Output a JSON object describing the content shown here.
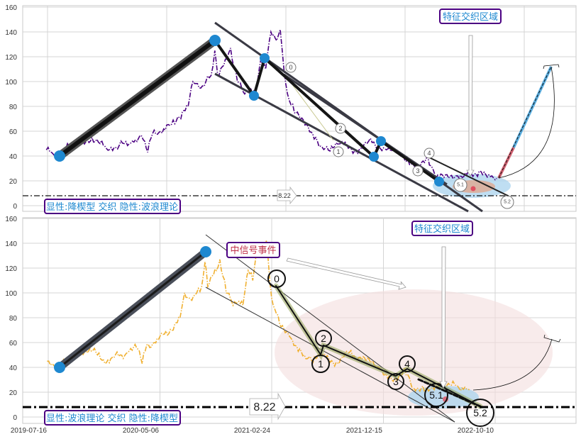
{
  "chart_data": [
    {
      "type": "line",
      "panel": "top",
      "title": "",
      "xlabel": "",
      "ylabel": "",
      "ylim": [
        0,
        160
      ],
      "yticks": [
        0,
        20,
        40,
        60,
        80,
        100,
        120,
        140,
        160
      ],
      "grid": true,
      "series_color": "#4b0082",
      "line_style": "dash-dot",
      "support_level": "8.22",
      "pattern_label": "显性:降楔型 交织 隐性:波浪理论",
      "zone_label": "特征交织区域",
      "wave_labels": [
        "0",
        "1",
        "2",
        "3",
        "4",
        "5.1",
        "5.2"
      ],
      "pivot_values": [
        40,
        133,
        89,
        119,
        39,
        52,
        19
      ]
    },
    {
      "type": "line",
      "panel": "bottom",
      "title": "",
      "xlabel": "",
      "ylabel": "",
      "ylim": [
        0,
        160
      ],
      "yticks": [
        0,
        20,
        40,
        60,
        80,
        100,
        120,
        140,
        160
      ],
      "xticks": [
        "2019-07-16",
        "2020-05-06",
        "2021-02-24",
        "2021-12-15",
        "2022-10-10"
      ],
      "grid": true,
      "series_color": "#f0b030",
      "line_style": "dash-dot",
      "support_level": "8.22",
      "pattern_label": "显性:波浪理论 交织 隐性:降楔型",
      "zone_label": "特征交织区域",
      "event_label": "中信号事件",
      "wave_labels": [
        "0",
        "1",
        "2",
        "3",
        "4",
        "5.1",
        "5.2"
      ],
      "pivot_values": [
        40,
        133
      ]
    }
  ],
  "price_series": {
    "x_unit": "days since 2019-07-16",
    "points": [
      [
        -3,
        45
      ],
      [
        10,
        43
      ],
      [
        32,
        40
      ],
      [
        45,
        46
      ],
      [
        58,
        49
      ],
      [
        80,
        52
      ],
      [
        110,
        55
      ],
      [
        130,
        50
      ],
      [
        146,
        46
      ],
      [
        165,
        47
      ],
      [
        190,
        50
      ],
      [
        210,
        52
      ],
      [
        233,
        56
      ],
      [
        248,
        43
      ],
      [
        260,
        58
      ],
      [
        280,
        60
      ],
      [
        295,
        65
      ],
      [
        315,
        66
      ],
      [
        330,
        70
      ],
      [
        348,
        80
      ],
      [
        360,
        100
      ],
      [
        375,
        95
      ],
      [
        392,
        100
      ],
      [
        405,
        105
      ],
      [
        414,
        125
      ],
      [
        421,
        105
      ],
      [
        444,
        118
      ],
      [
        453,
        127
      ],
      [
        470,
        100
      ],
      [
        488,
        90
      ],
      [
        500,
        92
      ],
      [
        514,
        90
      ],
      [
        528,
        118
      ],
      [
        540,
        110
      ],
      [
        553,
        140
      ],
      [
        567,
        133
      ],
      [
        576,
        142
      ],
      [
        585,
        110
      ],
      [
        594,
        90
      ],
      [
        611,
        75
      ],
      [
        637,
        65
      ],
      [
        664,
        55
      ],
      [
        680,
        47
      ],
      [
        699,
        44
      ],
      [
        725,
        50
      ],
      [
        760,
        44
      ],
      [
        795,
        52
      ],
      [
        820,
        48
      ],
      [
        839,
        45
      ],
      [
        874,
        40
      ],
      [
        900,
        33
      ],
      [
        918,
        30
      ],
      [
        941,
        40
      ],
      [
        962,
        22
      ],
      [
        989,
        25
      ],
      [
        1015,
        24
      ],
      [
        1042,
        28
      ],
      [
        1060,
        26
      ],
      [
        1077,
        25
      ],
      [
        1100,
        24
      ],
      [
        1112,
        22
      ]
    ]
  }
}
